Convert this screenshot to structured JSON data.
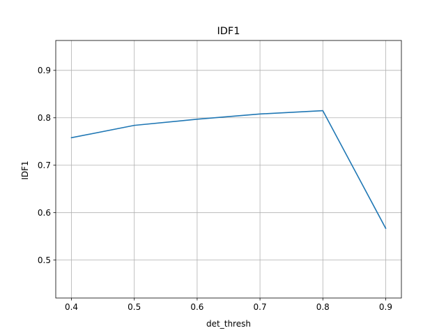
{
  "chart_data": {
    "type": "line",
    "title": "IDF1",
    "xlabel": "det_thresh",
    "ylabel": "IDF1",
    "x": [
      0.4,
      0.5,
      0.6,
      0.7,
      0.8,
      0.9
    ],
    "series": [
      {
        "values": [
          0.758,
          0.784,
          0.797,
          0.808,
          0.815,
          0.567
        ],
        "color": "#1f77b4"
      }
    ],
    "xlim": [
      0.375,
      0.925
    ],
    "ylim": [
      0.42,
      0.963
    ],
    "xticks": [
      0.4,
      0.5,
      0.6,
      0.7,
      0.8,
      0.9
    ],
    "xtick_labels": [
      "0.4",
      "0.5",
      "0.6",
      "0.7",
      "0.8",
      "0.9"
    ],
    "yticks": [
      0.5,
      0.6,
      0.7,
      0.8,
      0.9
    ],
    "ytick_labels": [
      "0.5",
      "0.6",
      "0.7",
      "0.8",
      "0.9"
    ],
    "grid": true,
    "legend": false
  }
}
